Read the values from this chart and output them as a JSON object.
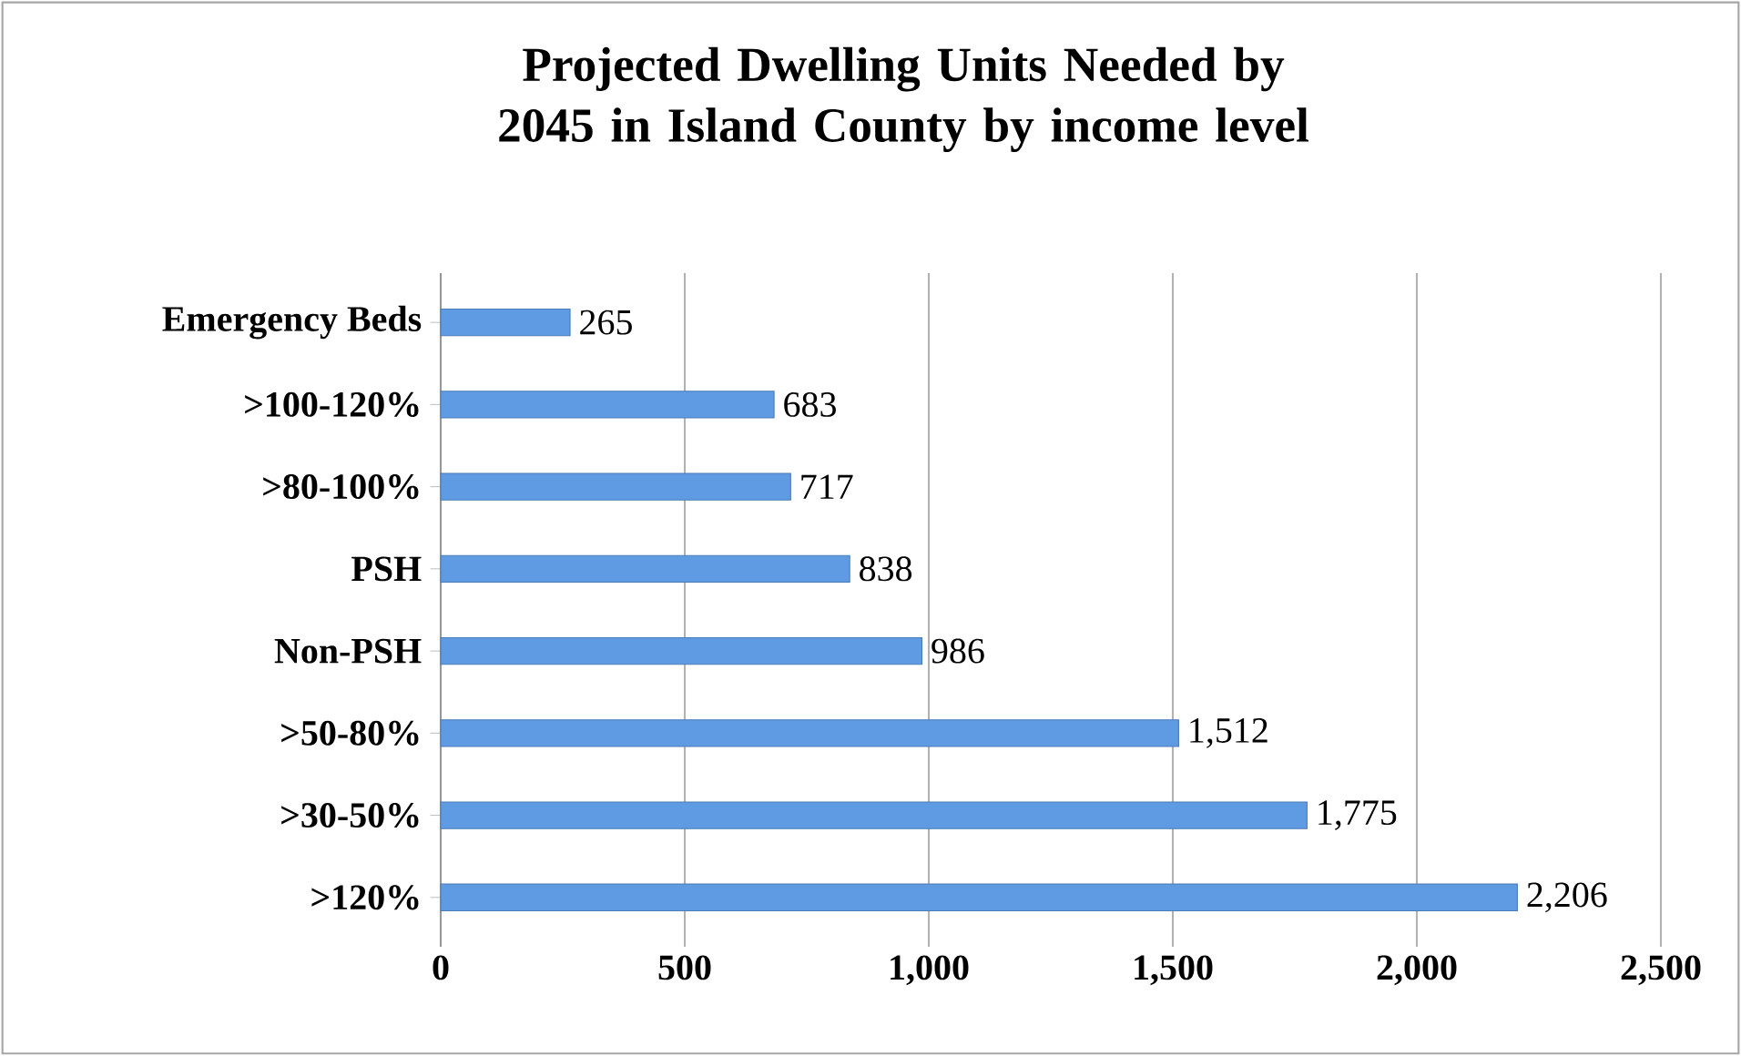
{
  "chart_data": {
    "type": "bar",
    "orientation": "horizontal",
    "title": "Projected Dwelling Units Needed by 2045 in Island County by income level",
    "categories": [
      "Emergency Beds",
      ">100-120%",
      ">80-100%",
      "PSH",
      "Non-PSH",
      ">50-80%",
      ">30-50%",
      ">120%"
    ],
    "values": [
      265,
      683,
      717,
      838,
      986,
      1512,
      1775,
      2206
    ],
    "value_labels": [
      "265",
      "683",
      "717",
      "838",
      "986",
      "1,512",
      "1,775",
      "2,206"
    ],
    "color": "#5f9be3",
    "xlim": [
      0,
      2500
    ],
    "xticks": [
      0,
      500,
      {
        "value": 1000,
        "label": "1,000"
      },
      {
        "value": 1500,
        "label": "1,500"
      },
      {
        "value": 2000,
        "label": "2,000"
      },
      {
        "value": 2500,
        "label": "2,500"
      }
    ],
    "grid": "x"
  }
}
